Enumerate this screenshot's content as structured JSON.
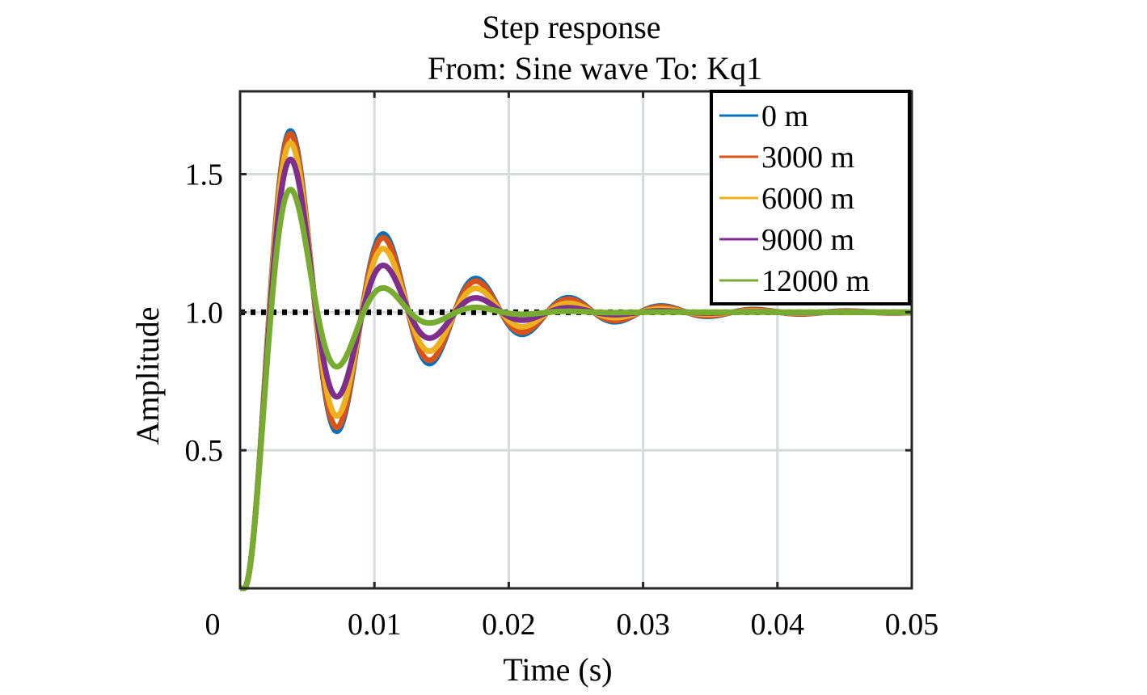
{
  "chart_data": {
    "type": "line",
    "title": [
      "Step response",
      "From: Sine wave  To: Kq1"
    ],
    "xlabel": "Time (s)",
    "ylabel": "Amplitude",
    "xlim": [
      0,
      0.05
    ],
    "ylim": [
      0,
      1.8
    ],
    "xticks": [
      0,
      0.01,
      0.02,
      0.03,
      0.04,
      0.05
    ],
    "xtick_labels": [
      "0",
      "0.01",
      "0.02",
      "0.03",
      "0.04",
      "0.05"
    ],
    "yticks": [
      0.5,
      1.0,
      1.5
    ],
    "ytick_labels": [
      "0.5",
      "1.0",
      "1.5"
    ],
    "grid": true,
    "legend_position": "top-right",
    "reference_line": {
      "y": 1.0,
      "style": "dotted",
      "color": "#000000"
    },
    "model": "step response of an underdamped second-order system with time delay",
    "series": [
      {
        "name": "0 m",
        "color": "#0072BD",
        "overshoot": 1.67,
        "first_undershoot": 0.56,
        "delay": 0.0003,
        "period": 0.0069,
        "peak_time": 0.0037
      },
      {
        "name": "3000 m",
        "color": "#D95319",
        "overshoot": 1.65,
        "first_undershoot": 0.58,
        "delay": 0.0003,
        "period": 0.0069,
        "peak_time": 0.0037
      },
      {
        "name": "6000 m",
        "color": "#EDB120",
        "overshoot": 1.62,
        "first_undershoot": 0.62,
        "delay": 0.0003,
        "period": 0.0069,
        "peak_time": 0.0037
      },
      {
        "name": "9000 m",
        "color": "#7E2F8E",
        "overshoot": 1.56,
        "first_undershoot": 0.69,
        "delay": 0.0003,
        "period": 0.0069,
        "peak_time": 0.0037
      },
      {
        "name": "12000 m",
        "color": "#77AC30",
        "overshoot": 1.45,
        "first_undershoot": 0.8,
        "delay": 0.0003,
        "period": 0.0069,
        "peak_time": 0.0037
      }
    ]
  }
}
